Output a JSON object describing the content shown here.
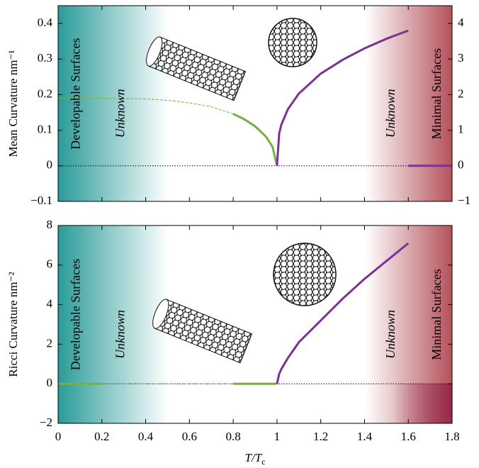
{
  "chart_data": [
    {
      "type": "line",
      "ylabel": "Mean Curvature nm⁻¹",
      "annotations": [
        "Developable Surfaces",
        "Unknown",
        "Unknown",
        "Minimal Surfaces"
      ],
      "xlim": [
        0,
        1.8
      ],
      "xticks": [
        0,
        0.2,
        0.4,
        0.6,
        0.8,
        1,
        1.2,
        1.4,
        1.6,
        1.8
      ],
      "ylim": [
        -0.1,
        0.45
      ],
      "yticks": [
        {
          "value": -0.1,
          "label": "−0.1"
        },
        0,
        0.1,
        0.2,
        0.3,
        0.4
      ],
      "y2lim": [
        -1,
        4.5
      ],
      "y2ticks": [
        {
          "value": -1,
          "label": "−1"
        },
        0,
        1,
        2,
        3,
        4
      ],
      "series": [
        {
          "color": "#76b041",
          "style": "dashed",
          "x": [
            0,
            0.1,
            0.2,
            0.3,
            0.4,
            0.5,
            0.6,
            0.7,
            0.8
          ],
          "values": [
            0.19,
            0.19,
            0.19,
            0.189,
            0.188,
            0.184,
            0.177,
            0.166,
            0.146
          ]
        },
        {
          "color": "#76b041",
          "style": "solid",
          "x": [
            0.8,
            0.85,
            0.9,
            0.95,
            0.98,
            1
          ],
          "values": [
            0.146,
            0.131,
            0.111,
            0.082,
            0.053,
            0
          ]
        },
        {
          "color": "#7b3294",
          "style": "solid",
          "x": [
            1,
            1.01,
            1.02,
            1.05,
            1.1,
            1.2,
            1.3,
            1.4,
            1.5,
            1.6
          ],
          "values": [
            0,
            0.091,
            0.116,
            0.159,
            0.203,
            0.259,
            0.298,
            0.33,
            0.357,
            0.38
          ]
        },
        {
          "color": "#7b3294",
          "style": "solid",
          "x": [
            1.6,
            1.8
          ],
          "values": [
            0,
            0
          ]
        }
      ]
    },
    {
      "type": "line",
      "ylabel": "Ricci Curvature nm⁻²",
      "xlabel": [
        "T/T",
        "c"
      ],
      "annotations": [
        "Developable Surfaces",
        "Unknown",
        "Unknown",
        "Minimal Surfaces"
      ],
      "xlim": [
        0,
        1.8
      ],
      "xticks": [
        0,
        0.2,
        0.4,
        0.6,
        0.8,
        1,
        1.2,
        1.4,
        1.6,
        1.8
      ],
      "ylim": [
        -2,
        8
      ],
      "yticks": [
        {
          "value": -2,
          "label": "−2"
        },
        0,
        2,
        4,
        6,
        8
      ],
      "series": [
        {
          "color": "#76b041",
          "style": "solid",
          "x": [
            0,
            0.2
          ],
          "values": [
            0,
            0
          ]
        },
        {
          "color": "#76b041",
          "style": "dashed",
          "x": [
            0.2,
            0.8
          ],
          "values": [
            0,
            0
          ]
        },
        {
          "color": "#76b041",
          "style": "solid",
          "x": [
            0.8,
            1
          ],
          "values": [
            0,
            0
          ]
        },
        {
          "color": "#7b3294",
          "style": "solid",
          "x": [
            1,
            1.01,
            1.02,
            1.05,
            1.1,
            1.2,
            1.3,
            1.4,
            1.5,
            1.6
          ],
          "values": [
            0,
            0.5,
            0.75,
            1.3,
            2.1,
            3.2,
            4.3,
            5.3,
            6.2,
            7.1
          ]
        }
      ]
    }
  ]
}
